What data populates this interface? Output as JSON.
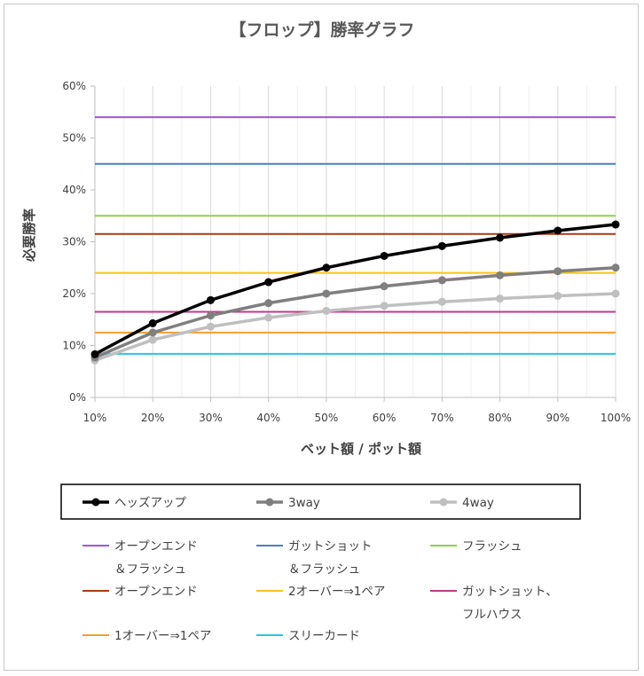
{
  "chart_data": {
    "type": "line",
    "title": "【フロップ】勝率グラフ",
    "xlabel": "ベット額 / ポット額",
    "ylabel": "必要勝率",
    "x": [
      0.1,
      0.2,
      0.3,
      0.4,
      0.5,
      0.6,
      0.7,
      0.8,
      0.9,
      1.0
    ],
    "x_tick_labels": [
      "10%",
      "20%",
      "30%",
      "40%",
      "50%",
      "60%",
      "70%",
      "80%",
      "90%",
      "100%"
    ],
    "ylim": [
      0,
      0.6
    ],
    "y_ticks": [
      0,
      0.1,
      0.2,
      0.3,
      0.4,
      0.5,
      0.6
    ],
    "y_tick_labels": [
      "0%",
      "10%",
      "20%",
      "30%",
      "40%",
      "50%",
      "60%"
    ],
    "grid": "vertical",
    "legend_placement": "bottom",
    "series": [
      {
        "name": "ヘッズアップ",
        "color": "#000000",
        "marker": "circle",
        "values": [
          0.0833,
          0.1429,
          0.1875,
          0.2222,
          0.25,
          0.2727,
          0.2917,
          0.3077,
          0.3214,
          0.3333
        ]
      },
      {
        "name": "3way",
        "color": "#7f7f7f",
        "marker": "circle",
        "values": [
          0.0769,
          0.125,
          0.1579,
          0.1818,
          0.2,
          0.2143,
          0.2258,
          0.2353,
          0.2432,
          0.25
        ]
      },
      {
        "name": "4way",
        "color": "#bfbfbf",
        "marker": "circle",
        "values": [
          0.0714,
          0.1111,
          0.1364,
          0.1538,
          0.1667,
          0.1765,
          0.1842,
          0.1905,
          0.1957,
          0.2
        ]
      }
    ],
    "reference_lines": [
      {
        "name": "オープンエンド ＆フラッシュ",
        "label_lines": [
          "オープンエンド",
          "＆フラッシュ"
        ],
        "color": "#9b59d6",
        "value": 0.54
      },
      {
        "name": "ガットショット ＆フラッシュ",
        "label_lines": [
          "ガットショット",
          "＆フラッシュ"
        ],
        "color": "#4a7fc1",
        "value": 0.45
      },
      {
        "name": "フラッシュ",
        "label_lines": [
          "フラッシュ"
        ],
        "color": "#92d050",
        "value": 0.35
      },
      {
        "name": "オープンエンド",
        "label_lines": [
          "オープンエンド"
        ],
        "color": "#a83b12",
        "value": 0.315
      },
      {
        "name": "2オーバー⇒1ペア",
        "label_lines": [
          "2オーバー⇒1ペア"
        ],
        "color": "#f5c518",
        "value": 0.24
      },
      {
        "name": "ガットショット、 フルハウス",
        "label_lines": [
          "ガットショット、",
          "フルハウス"
        ],
        "color": "#c0398a",
        "value": 0.165
      },
      {
        "name": "1オーバー⇒1ペア",
        "label_lines": [
          "1オーバー⇒1ペア"
        ],
        "color": "#f0a030",
        "value": 0.125
      },
      {
        "name": "スリーカード",
        "label_lines": [
          "スリーカード"
        ],
        "color": "#2bc3e8",
        "value": 0.084
      }
    ]
  }
}
